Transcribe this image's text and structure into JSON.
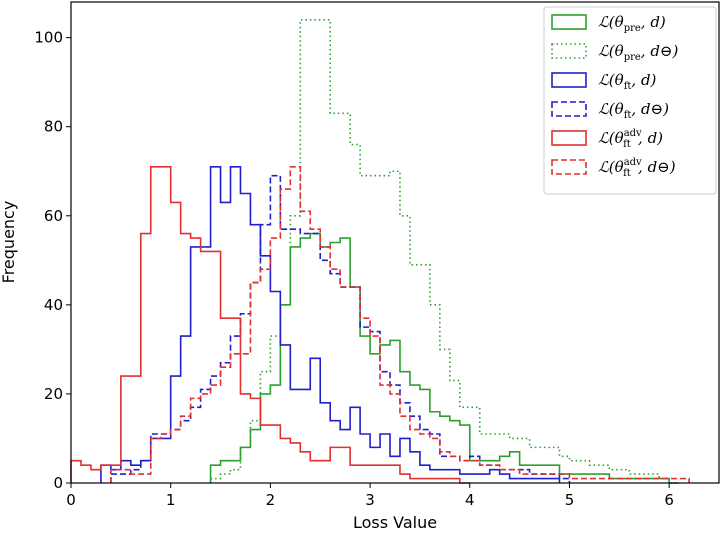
{
  "chart_data": {
    "type": "histogram",
    "title": "",
    "xlabel": "Loss Value",
    "ylabel": "Frequency",
    "xlim": [
      0,
      6.5
    ],
    "ylim": [
      0,
      108
    ],
    "xticks": [
      0,
      1,
      2,
      3,
      4,
      5,
      6
    ],
    "yticks": [
      0,
      20,
      40,
      60,
      80,
      100
    ],
    "grid": false,
    "legend_position": "top-right",
    "series": [
      {
        "name": "L(θpre, d)",
        "legend": {
          "main": "ℒ(θ",
          "sub": "pre",
          "sup": "",
          "tail": ", d)"
        },
        "color": "#2ca02c",
        "style": "solid",
        "edges": [
          1.4,
          1.5,
          1.6,
          1.7,
          1.8,
          1.9,
          2.0,
          2.1,
          2.2,
          2.3,
          2.4,
          2.5,
          2.6,
          2.7,
          2.8,
          2.9,
          3.0,
          3.1,
          3.2,
          3.3,
          3.4,
          3.5,
          3.6,
          3.7,
          3.8,
          3.9,
          4.0,
          4.1,
          4.2,
          4.3,
          4.4,
          4.5,
          4.6,
          4.7,
          4.8,
          4.9,
          5.0,
          5.1,
          5.2,
          5.3,
          5.4,
          5.5,
          5.6,
          5.7,
          5.8,
          5.9,
          6.0,
          6.1
        ],
        "counts": [
          4,
          5,
          5,
          8,
          12,
          20,
          22,
          40,
          53,
          55,
          56,
          53,
          54,
          55,
          44,
          33,
          29,
          31,
          32,
          25,
          22,
          21,
          16,
          15,
          14,
          13,
          5,
          5,
          5,
          6,
          7,
          4,
          4,
          4,
          4,
          2,
          2,
          2,
          2,
          2,
          1,
          1,
          1,
          1,
          1,
          1,
          0
        ]
      },
      {
        "name": "L(θpre, d⊖)",
        "legend": {
          "main": "ℒ(θ",
          "sub": "pre",
          "sup": "",
          "tail": ", d⊖)"
        },
        "color": "#2ca02c",
        "style": "dotted",
        "edges": [
          1.4,
          1.5,
          1.6,
          1.7,
          1.8,
          1.9,
          2.0,
          2.1,
          2.2,
          2.3,
          2.4,
          2.5,
          2.6,
          2.7,
          2.8,
          2.9,
          3.0,
          3.1,
          3.2,
          3.3,
          3.4,
          3.5,
          3.6,
          3.7,
          3.8,
          3.9,
          4.0,
          4.1,
          4.2,
          4.3,
          4.4,
          4.5,
          4.6,
          4.7,
          4.8,
          4.9,
          5.0,
          5.1,
          5.2,
          5.3,
          5.4,
          5.5,
          5.6,
          5.7,
          5.8,
          5.9,
          6.0,
          6.1
        ],
        "counts": [
          1,
          2,
          3,
          8,
          14,
          25,
          33,
          40,
          60,
          104,
          104,
          104,
          83,
          83,
          76,
          69,
          69,
          69,
          70,
          60,
          49,
          49,
          40,
          30,
          23,
          17,
          17,
          11,
          11,
          11,
          10,
          10,
          8,
          8,
          8,
          6,
          5,
          5,
          4,
          4,
          3,
          3,
          2,
          2,
          2,
          1,
          0
        ]
      },
      {
        "name": "L(θft, d)",
        "legend": {
          "main": "ℒ(θ",
          "sub": "ft",
          "sup": "",
          "tail": ", d)"
        },
        "color": "#1f1fcc",
        "style": "solid",
        "edges": [
          0.3,
          0.4,
          0.5,
          0.6,
          0.7,
          0.8,
          0.9,
          1.0,
          1.1,
          1.2,
          1.3,
          1.4,
          1.5,
          1.6,
          1.7,
          1.8,
          1.9,
          2.0,
          2.1,
          2.2,
          2.3,
          2.4,
          2.5,
          2.6,
          2.7,
          2.8,
          2.9,
          3.0,
          3.1,
          3.2,
          3.3,
          3.4,
          3.5,
          3.6,
          3.7,
          3.8,
          3.9,
          4.0,
          4.1,
          4.2,
          4.3,
          4.4,
          4.5,
          4.6,
          4.7,
          4.8,
          4.9
        ],
        "counts": [
          4,
          3,
          5,
          4,
          5,
          10,
          10,
          24,
          33,
          53,
          53,
          71,
          63,
          71,
          65,
          58,
          51,
          43,
          31,
          21,
          21,
          28,
          18,
          14,
          12,
          17,
          11,
          8,
          11,
          6,
          10,
          7,
          4,
          3,
          3,
          3,
          2,
          2,
          2,
          3,
          2,
          1,
          1,
          1,
          1,
          1
        ]
      },
      {
        "name": "L(θft, d⊖)",
        "legend": {
          "main": "ℒ(θ",
          "sub": "ft",
          "sup": "",
          "tail": ", d⊖)"
        },
        "color": "#1f1fcc",
        "style": "dashed",
        "edges": [
          0.4,
          0.5,
          0.6,
          0.7,
          0.8,
          0.9,
          1.0,
          1.1,
          1.2,
          1.3,
          1.4,
          1.5,
          1.6,
          1.7,
          1.8,
          1.9,
          2.0,
          2.1,
          2.2,
          2.3,
          2.4,
          2.5,
          2.6,
          2.7,
          2.8,
          2.9,
          3.0,
          3.1,
          3.2,
          3.3,
          3.4,
          3.5,
          3.6,
          3.7,
          3.8,
          3.9,
          4.0,
          4.1,
          4.2,
          4.3,
          4.4,
          4.5,
          4.6,
          4.7,
          4.8,
          4.9,
          5.0
        ],
        "counts": [
          2,
          2,
          3,
          5,
          11,
          11,
          12,
          14,
          17,
          21,
          24,
          27,
          33,
          38,
          45,
          58,
          69,
          57,
          57,
          56,
          56,
          50,
          47,
          44,
          44,
          35,
          34,
          25,
          22,
          18,
          15,
          12,
          11,
          6,
          6,
          5,
          6,
          4,
          4,
          3,
          3,
          3,
          2,
          2,
          2,
          1
        ]
      },
      {
        "name": "L(θft^adv, d)",
        "legend": {
          "main": "ℒ(θ",
          "sub": "ft",
          "sup": "adv",
          "tail": ", d)"
        },
        "color": "#e03030",
        "style": "solid",
        "edges": [
          0.0,
          0.1,
          0.2,
          0.3,
          0.4,
          0.5,
          0.6,
          0.7,
          0.8,
          0.9,
          1.0,
          1.1,
          1.2,
          1.3,
          1.4,
          1.5,
          1.6,
          1.7,
          1.8,
          1.9,
          2.0,
          2.1,
          2.2,
          2.3,
          2.4,
          2.5,
          2.6,
          2.7,
          2.8,
          2.9,
          3.0,
          3.1,
          3.2,
          3.3,
          3.4,
          3.5,
          3.6,
          3.7,
          3.8,
          3.9,
          4.0
        ],
        "counts": [
          5,
          4,
          3,
          4,
          4,
          24,
          24,
          56,
          71,
          71,
          63,
          56,
          55,
          52,
          52,
          37,
          37,
          20,
          19,
          13,
          13,
          10,
          9,
          7,
          5,
          5,
          8,
          8,
          4,
          4,
          4,
          4,
          4,
          2,
          1,
          1,
          1,
          1,
          1,
          0
        ]
      },
      {
        "name": "L(θft^adv, d⊖)",
        "legend": {
          "main": "ℒ(θ",
          "sub": "ft",
          "sup": "adv",
          "tail": ", d⊖)"
        },
        "color": "#e03030",
        "style": "dashed",
        "edges": [
          0.4,
          0.5,
          0.6,
          0.7,
          0.8,
          0.9,
          1.0,
          1.1,
          1.2,
          1.3,
          1.4,
          1.5,
          1.6,
          1.7,
          1.8,
          1.9,
          2.0,
          2.1,
          2.2,
          2.3,
          2.4,
          2.5,
          2.6,
          2.7,
          2.8,
          2.9,
          3.0,
          3.1,
          3.2,
          3.3,
          3.4,
          3.5,
          3.6,
          3.7,
          3.8,
          3.9,
          4.0,
          4.1,
          4.2,
          4.3,
          4.4,
          4.5,
          4.6,
          4.7,
          4.8,
          4.9,
          5.0,
          5.1,
          5.2,
          5.3,
          5.4,
          5.5,
          5.6,
          5.7,
          5.8,
          5.9,
          6.0,
          6.1,
          6.2
        ],
        "counts": [
          3,
          3,
          2,
          2,
          10,
          11,
          12,
          15,
          19,
          20,
          22,
          26,
          29,
          29,
          45,
          48,
          55,
          66,
          71,
          61,
          57,
          53,
          48,
          44,
          44,
          37,
          33,
          22,
          20,
          15,
          12,
          11,
          10,
          7,
          6,
          5,
          5,
          4,
          4,
          3,
          3,
          2,
          2,
          2,
          2,
          2,
          1,
          1,
          1,
          1,
          1,
          1,
          1,
          1,
          1,
          1,
          1,
          1
        ]
      }
    ]
  }
}
